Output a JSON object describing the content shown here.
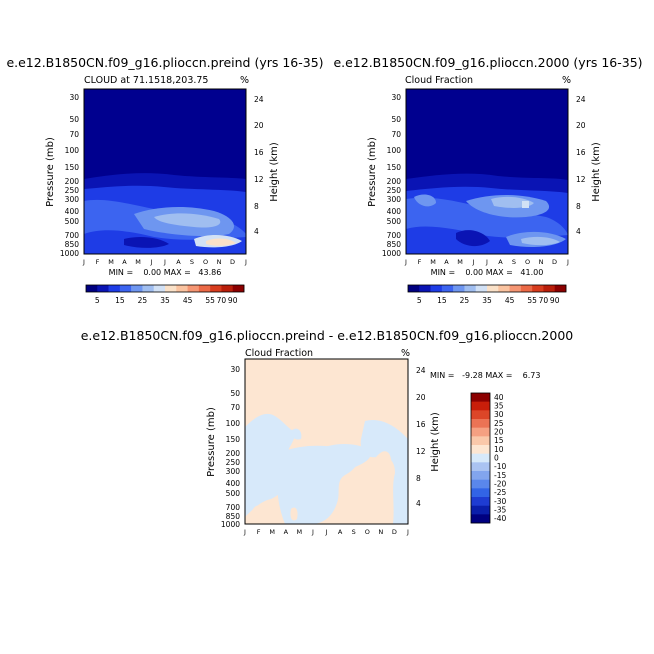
{
  "colors": {
    "background": "#ffffff",
    "panel_fill_default": "#00008f",
    "cloud_scale": [
      "#000080",
      "#0a14b4",
      "#1e3ce6",
      "#3c64f0",
      "#6e96f0",
      "#a0bef0",
      "#d2e1f5",
      "#fae1c8",
      "#fac3a0",
      "#f59673",
      "#eb6946",
      "#d73c1e",
      "#b91e0a",
      "#8b0000"
    ],
    "diff_scale": [
      "#000080",
      "#0a1eaa",
      "#1e3cd2",
      "#3264e6",
      "#5a87eb",
      "#82a5ee",
      "#aac3f2",
      "#d7e9fa",
      "#fde6d2",
      "#fac8aa",
      "#f5a082",
      "#eb7355",
      "#dc4628",
      "#c81e0a",
      "#8b0000"
    ]
  },
  "chart_data": [
    {
      "type": "heatmap",
      "title": "e.e12.B1850CN.f09_g16.plioccn.preind (yrs 16-35)",
      "subtitle": "CLOUD at 71.1518,203.75",
      "unit_label": "%",
      "ylabel": "Pressure (mb)",
      "ylabel_right": "Height (km)",
      "x_ticks": [
        "J",
        "F",
        "M",
        "A",
        "M",
        "J",
        "J",
        "A",
        "S",
        "O",
        "N",
        "D",
        "J"
      ],
      "y_ticks": [
        "30",
        "50",
        "70",
        "100",
        "150",
        "200",
        "250",
        "300",
        "400",
        "500",
        "700",
        "850",
        "1000"
      ],
      "y_ticks_right": [
        "24",
        "20",
        "16",
        "12",
        "8",
        "4"
      ],
      "stats": "MIN =    0.00 MAX =   43.86",
      "colorbar_labels": [
        "5",
        "15",
        "25",
        "35",
        "45",
        "55",
        "70",
        "90"
      ]
    },
    {
      "type": "heatmap",
      "title": "e.e12.B1850CN.f09_g16.plioccn.2000 (yrs 16-35)",
      "subtitle": "Cloud Fraction",
      "unit_label": "%",
      "ylabel": "Pressure (mb)",
      "ylabel_right": "Height (km)",
      "x_ticks": [
        "J",
        "F",
        "M",
        "A",
        "M",
        "J",
        "J",
        "A",
        "S",
        "O",
        "N",
        "D",
        "J"
      ],
      "y_ticks": [
        "30",
        "50",
        "70",
        "100",
        "150",
        "200",
        "250",
        "300",
        "400",
        "500",
        "700",
        "850",
        "1000"
      ],
      "y_ticks_right": [
        "24",
        "20",
        "16",
        "12",
        "8",
        "4"
      ],
      "stats": "MIN =    0.00 MAX =   41.00",
      "colorbar_labels": [
        "5",
        "15",
        "25",
        "35",
        "45",
        "55",
        "70",
        "90"
      ]
    },
    {
      "type": "heatmap",
      "title": "e.e12.B1850CN.f09_g16.plioccn.preind - e.e12.B1850CN.f09_g16.plioccn.2000",
      "subtitle": "Cloud Fraction",
      "unit_label": "%",
      "ylabel": "Pressure (mb)",
      "ylabel_right": "Height (km)",
      "x_ticks": [
        "J",
        "F",
        "M",
        "A",
        "M",
        "J",
        "J",
        "A",
        "S",
        "O",
        "N",
        "D",
        "J"
      ],
      "y_ticks": [
        "30",
        "50",
        "70",
        "100",
        "150",
        "200",
        "250",
        "300",
        "400",
        "500",
        "700",
        "850",
        "1000"
      ],
      "y_ticks_right": [
        "24",
        "20",
        "16",
        "12",
        "8",
        "4"
      ],
      "stats": "MIN =   -9.28 MAX =    6.73",
      "colorbar_labels": [
        "40",
        "35",
        "30",
        "25",
        "20",
        "15",
        "10",
        "0",
        "-10",
        "-15",
        "-20",
        "-25",
        "-30",
        "-35",
        "-40"
      ]
    }
  ]
}
